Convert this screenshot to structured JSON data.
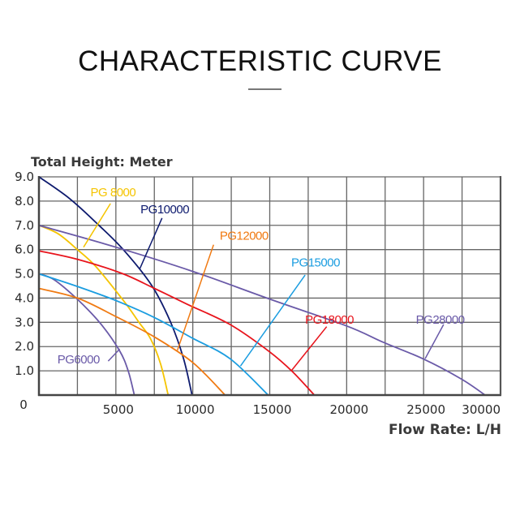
{
  "header": {
    "title": "CHARACTERISTIC CURVE"
  },
  "chart_data": {
    "type": "line",
    "title": "CHARACTERISTIC CURVE",
    "ylabel": "Total Height: Meter",
    "xlabel": "Flow Rate: L/H",
    "xlim": [
      0,
      30000
    ],
    "ylim": [
      0,
      9.0
    ],
    "grid": true,
    "x_grid_step": 2500,
    "y_grid_step": 1.0,
    "xticks": [
      {
        "value": 5000,
        "label": "5000"
      },
      {
        "value": 10000,
        "label": "10000"
      },
      {
        "value": 15000,
        "label": "15000"
      },
      {
        "value": 20000,
        "label": "20000"
      },
      {
        "value": 25000,
        "label": "25000"
      },
      {
        "value": 30000,
        "label": "30000"
      }
    ],
    "yticks": [
      {
        "value": 0,
        "label": "0"
      },
      {
        "value": 1,
        "label": "1.0"
      },
      {
        "value": 2,
        "label": "2.0"
      },
      {
        "value": 3,
        "label": "3.0"
      },
      {
        "value": 4,
        "label": "4.0"
      },
      {
        "value": 5,
        "label": "5.0"
      },
      {
        "value": 6,
        "label": "6.0"
      },
      {
        "value": 7,
        "label": "7.0"
      },
      {
        "value": 8,
        "label": "8.0"
      },
      {
        "value": 9,
        "label": "9.0"
      }
    ],
    "series": [
      {
        "name": "PG6000",
        "color": "#6a5aa8",
        "points": [
          [
            0,
            5.0
          ],
          [
            1000,
            4.75
          ],
          [
            2500,
            3.95
          ],
          [
            4000,
            2.95
          ],
          [
            5230,
            1.84
          ],
          [
            5800,
            1.0
          ],
          [
            6200,
            0
          ]
        ],
        "label_anchor": [
          1200,
          1.3
        ],
        "leader": [
          [
            4500,
            1.4
          ],
          [
            5250,
            1.9
          ]
        ]
      },
      {
        "name": "PG 8000",
        "color": "#f5c400",
        "points": [
          [
            0,
            7.0
          ],
          [
            1250,
            6.65
          ],
          [
            2500,
            6.0
          ],
          [
            3700,
            5.3
          ],
          [
            5550,
            3.85
          ],
          [
            6500,
            3.0
          ],
          [
            7240,
            2.34
          ],
          [
            7900,
            1.3
          ],
          [
            8400,
            0
          ]
        ],
        "label_anchor": [
          3350,
          8.2
        ],
        "leader": [
          [
            4650,
            7.9
          ],
          [
            2900,
            6.1
          ]
        ]
      },
      {
        "name": "PG10000",
        "color": "#0d1a6e",
        "points": [
          [
            0,
            9.0
          ],
          [
            2000,
            8.1
          ],
          [
            3900,
            7.0
          ],
          [
            5550,
            5.95
          ],
          [
            7350,
            4.5
          ],
          [
            8560,
            3.0
          ],
          [
            9400,
            1.5
          ],
          [
            9950,
            0
          ]
        ],
        "label_anchor": [
          6600,
          7.5
        ],
        "leader": [
          [
            8000,
            7.3
          ],
          [
            6550,
            5.2
          ]
        ]
      },
      {
        "name": "PG12000",
        "color": "#f07a12",
        "points": [
          [
            0,
            4.4
          ],
          [
            2500,
            4.0
          ],
          [
            5000,
            3.24
          ],
          [
            7500,
            2.4
          ],
          [
            10000,
            1.34
          ],
          [
            12100,
            0
          ]
        ],
        "label_anchor": [
          11750,
          6.4
        ],
        "leader": [
          [
            11350,
            6.2
          ],
          [
            9000,
            1.85
          ]
        ]
      },
      {
        "name": "PG15000",
        "color": "#1b9de0",
        "points": [
          [
            0,
            5.0
          ],
          [
            2500,
            4.48
          ],
          [
            5000,
            3.9
          ],
          [
            7500,
            3.2
          ],
          [
            10000,
            2.34
          ],
          [
            12420,
            1.5
          ],
          [
            14900,
            0
          ]
        ],
        "label_anchor": [
          16400,
          5.3
        ],
        "leader": [
          [
            17300,
            4.95
          ],
          [
            13100,
            1.2
          ]
        ]
      },
      {
        "name": "PG18000",
        "color": "#e8141c",
        "points": [
          [
            0,
            5.95
          ],
          [
            2500,
            5.6
          ],
          [
            5390,
            5.02
          ],
          [
            7500,
            4.4
          ],
          [
            9620,
            3.75
          ],
          [
            12420,
            2.91
          ],
          [
            14960,
            1.8
          ],
          [
            16500,
            0.95
          ],
          [
            17900,
            0
          ]
        ],
        "label_anchor": [
          17300,
          2.95
        ],
        "leader": [
          [
            18700,
            2.82
          ],
          [
            16400,
            1.0
          ]
        ]
      },
      {
        "name": "PG28000",
        "color": "#6a5aa8",
        "points": [
          [
            0,
            7.0
          ],
          [
            5000,
            6.1
          ],
          [
            10000,
            5.1
          ],
          [
            14900,
            3.98
          ],
          [
            20000,
            2.85
          ],
          [
            22400,
            2.17
          ],
          [
            24950,
            1.5
          ],
          [
            27430,
            0.67
          ],
          [
            29000,
            0
          ]
        ],
        "label_anchor": [
          24500,
          2.95
        ],
        "leader": [
          [
            26300,
            2.91
          ],
          [
            25100,
            1.5
          ]
        ]
      }
    ]
  }
}
